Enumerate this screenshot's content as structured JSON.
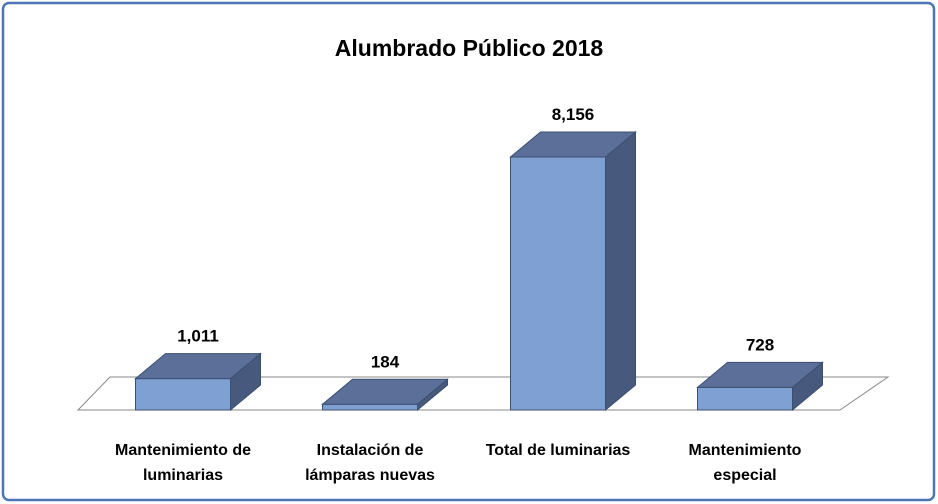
{
  "chart_data": {
    "type": "bar3d",
    "title": "Alumbrado Público 2018",
    "categories": [
      "Mantenimiento de luminarias",
      "Instalación de lámparas nuevas",
      "Total de luminarias",
      "Mantenimiento especial"
    ],
    "values": [
      1011,
      184,
      8156,
      728
    ],
    "value_labels": [
      "1,011",
      "184",
      "8,156",
      "728"
    ],
    "color": "#7fa0d2"
  }
}
